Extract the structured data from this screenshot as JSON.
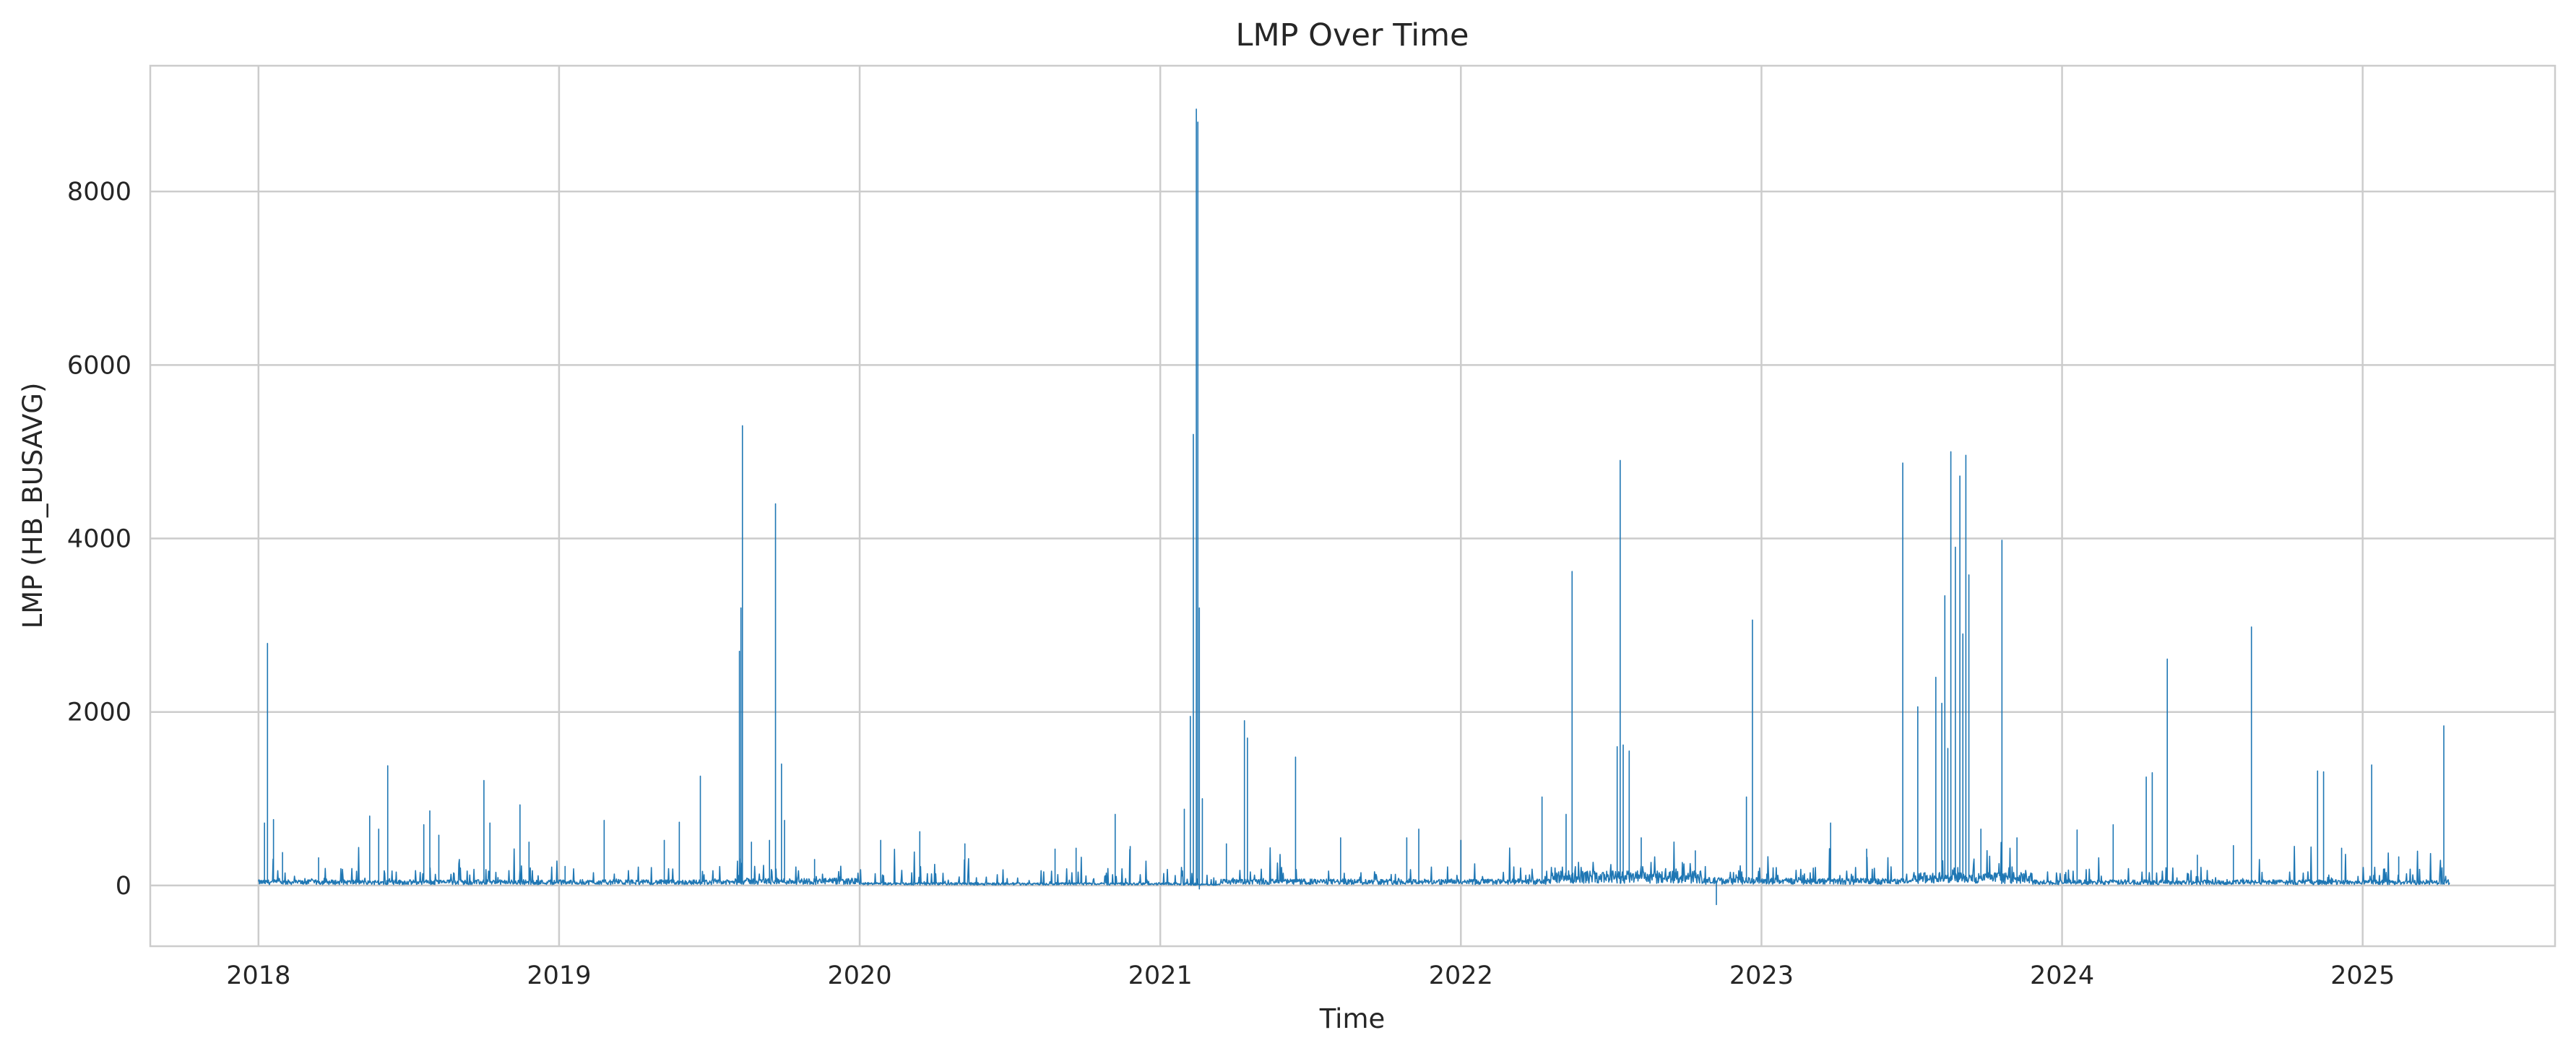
{
  "chart_data": {
    "type": "line",
    "title": "LMP Over Time",
    "xlabel": "Time",
    "ylabel": "LMP (HB_BUSAVG)",
    "xlim": [
      2017.64,
      2025.64
    ],
    "ylim": [
      -700,
      9450
    ],
    "grid": true,
    "legend": "none",
    "colors": {
      "series": "#1f77b4",
      "grid": "#cccccc",
      "text": "#262626"
    },
    "x_ticks": [
      {
        "value": 2018,
        "label": "2018"
      },
      {
        "value": 2019,
        "label": "2019"
      },
      {
        "value": 2020,
        "label": "2020"
      },
      {
        "value": 2021,
        "label": "2021"
      },
      {
        "value": 2022,
        "label": "2022"
      },
      {
        "value": 2023,
        "label": "2023"
      },
      {
        "value": 2024,
        "label": "2024"
      },
      {
        "value": 2025,
        "label": "2025"
      }
    ],
    "y_ticks": [
      {
        "value": 0,
        "label": "0"
      },
      {
        "value": 2000,
        "label": "2000"
      },
      {
        "value": 4000,
        "label": "4000"
      },
      {
        "value": 6000,
        "label": "6000"
      },
      {
        "value": 8000,
        "label": "8000"
      }
    ],
    "series": [
      {
        "x_range": [
          2018.0,
          2025.29
        ],
        "baseline_segments": [
          {
            "from": 2018.0,
            "to": 2019.6,
            "level": 35
          },
          {
            "from": 2019.6,
            "to": 2020.0,
            "level": 45
          },
          {
            "from": 2020.0,
            "to": 2021.1,
            "level": 18
          },
          {
            "from": 2021.1,
            "to": 2021.2,
            "level": 10
          },
          {
            "from": 2021.2,
            "to": 2022.3,
            "level": 40
          },
          {
            "from": 2022.3,
            "to": 2022.8,
            "level": 90
          },
          {
            "from": 2022.8,
            "to": 2023.0,
            "level": 50
          },
          {
            "from": 2023.0,
            "to": 2023.5,
            "level": 45
          },
          {
            "from": 2023.5,
            "to": 2023.9,
            "level": 80
          },
          {
            "from": 2023.9,
            "to": 2025.29,
            "level": 35
          }
        ],
        "spikes": [
          {
            "x": 2018.03,
            "y": 2790
          },
          {
            "x": 2018.02,
            "y": 720
          },
          {
            "x": 2018.05,
            "y": 760
          },
          {
            "x": 2018.08,
            "y": 380
          },
          {
            "x": 2018.2,
            "y": 320
          },
          {
            "x": 2018.37,
            "y": 800
          },
          {
            "x": 2018.4,
            "y": 650
          },
          {
            "x": 2018.43,
            "y": 1380
          },
          {
            "x": 2018.55,
            "y": 700
          },
          {
            "x": 2018.57,
            "y": 860
          },
          {
            "x": 2018.6,
            "y": 580
          },
          {
            "x": 2018.75,
            "y": 1210
          },
          {
            "x": 2018.77,
            "y": 720
          },
          {
            "x": 2018.87,
            "y": 930
          },
          {
            "x": 2018.9,
            "y": 500
          },
          {
            "x": 2019.02,
            "y": 220
          },
          {
            "x": 2019.15,
            "y": 750
          },
          {
            "x": 2019.35,
            "y": 520
          },
          {
            "x": 2019.4,
            "y": 730
          },
          {
            "x": 2019.47,
            "y": 1260
          },
          {
            "x": 2019.6,
            "y": 2700
          },
          {
            "x": 2019.605,
            "y": 3200
          },
          {
            "x": 2019.61,
            "y": 5300
          },
          {
            "x": 2019.6,
            "y": 700
          },
          {
            "x": 2019.64,
            "y": 500
          },
          {
            "x": 2019.7,
            "y": 520
          },
          {
            "x": 2019.72,
            "y": 4400
          },
          {
            "x": 2019.74,
            "y": 1400
          },
          {
            "x": 2019.75,
            "y": 750
          },
          {
            "x": 2019.85,
            "y": 300
          },
          {
            "x": 2020.07,
            "y": 520
          },
          {
            "x": 2020.2,
            "y": 620
          },
          {
            "x": 2020.35,
            "y": 480
          },
          {
            "x": 2020.65,
            "y": 420
          },
          {
            "x": 2020.72,
            "y": 430
          },
          {
            "x": 2020.85,
            "y": 820
          },
          {
            "x": 2020.9,
            "y": 450
          },
          {
            "x": 2021.08,
            "y": 880
          },
          {
            "x": 2021.1,
            "y": 1950
          },
          {
            "x": 2021.11,
            "y": 5200
          },
          {
            "x": 2021.12,
            "y": 8950
          },
          {
            "x": 2021.125,
            "y": 8800
          },
          {
            "x": 2021.13,
            "y": 3200
          },
          {
            "x": 2021.14,
            "y": 1000
          },
          {
            "x": 2021.22,
            "y": 480
          },
          {
            "x": 2021.28,
            "y": 1900
          },
          {
            "x": 2021.29,
            "y": 1700
          },
          {
            "x": 2021.45,
            "y": 1480
          },
          {
            "x": 2021.6,
            "y": 550
          },
          {
            "x": 2021.82,
            "y": 550
          },
          {
            "x": 2021.86,
            "y": 650
          },
          {
            "x": 2022.0,
            "y": 520
          },
          {
            "x": 2022.27,
            "y": 1020
          },
          {
            "x": 2022.35,
            "y": 820
          },
          {
            "x": 2022.37,
            "y": 3620
          },
          {
            "x": 2022.52,
            "y": 1600
          },
          {
            "x": 2022.53,
            "y": 4900
          },
          {
            "x": 2022.54,
            "y": 1620
          },
          {
            "x": 2022.56,
            "y": 1550
          },
          {
            "x": 2022.6,
            "y": 550
          },
          {
            "x": 2022.78,
            "y": 400
          },
          {
            "x": 2022.95,
            "y": 1020
          },
          {
            "x": 2022.97,
            "y": 3060
          },
          {
            "x": 2023.23,
            "y": 720
          },
          {
            "x": 2023.35,
            "y": 420
          },
          {
            "x": 2023.47,
            "y": 4870
          },
          {
            "x": 2023.52,
            "y": 2060
          },
          {
            "x": 2023.58,
            "y": 2400
          },
          {
            "x": 2023.6,
            "y": 2100
          },
          {
            "x": 2023.61,
            "y": 3340
          },
          {
            "x": 2023.62,
            "y": 1580
          },
          {
            "x": 2023.63,
            "y": 5000
          },
          {
            "x": 2023.645,
            "y": 3900
          },
          {
            "x": 2023.66,
            "y": 4720
          },
          {
            "x": 2023.67,
            "y": 2900
          },
          {
            "x": 2023.68,
            "y": 4960
          },
          {
            "x": 2023.69,
            "y": 3580
          },
          {
            "x": 2023.73,
            "y": 650
          },
          {
            "x": 2023.8,
            "y": 3980
          },
          {
            "x": 2023.85,
            "y": 550
          },
          {
            "x": 2024.05,
            "y": 640
          },
          {
            "x": 2024.17,
            "y": 700
          },
          {
            "x": 2024.28,
            "y": 1250
          },
          {
            "x": 2024.3,
            "y": 1300
          },
          {
            "x": 2024.35,
            "y": 2610
          },
          {
            "x": 2024.45,
            "y": 350
          },
          {
            "x": 2024.57,
            "y": 460
          },
          {
            "x": 2024.63,
            "y": 2980
          },
          {
            "x": 2024.85,
            "y": 1320
          },
          {
            "x": 2024.87,
            "y": 1310
          },
          {
            "x": 2024.93,
            "y": 430
          },
          {
            "x": 2025.03,
            "y": 1390
          },
          {
            "x": 2025.12,
            "y": 330
          },
          {
            "x": 2025.27,
            "y": 1840
          }
        ],
        "dips": [
          {
            "x": 2022.85,
            "y": -220
          },
          {
            "x": 2021.13,
            "y": -40
          }
        ]
      }
    ]
  }
}
